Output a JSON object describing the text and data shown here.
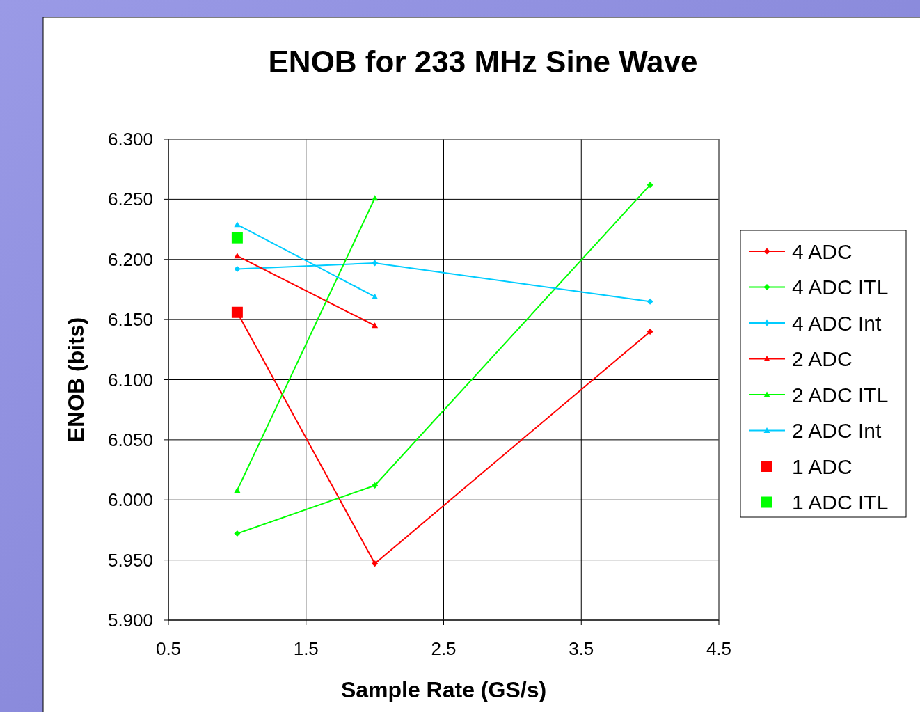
{
  "chart_data": {
    "type": "line",
    "title": "ENOB for 233 MHz Sine Wave",
    "xlabel": "Sample Rate (GS/s)",
    "ylabel": "ENOB (bits)",
    "xlim": [
      0.5,
      4.5
    ],
    "xticks": [
      0.5,
      1.5,
      2.5,
      3.5,
      4.5
    ],
    "ylim": [
      5.9,
      6.3
    ],
    "yticks": [
      {
        "value": 5.9,
        "label": "5.900"
      },
      {
        "value": 5.95,
        "label": "5.950"
      },
      {
        "value": 6.0,
        "label": "6.000"
      },
      {
        "value": 6.05,
        "label": "6.050"
      },
      {
        "value": 6.1,
        "label": "6.100"
      },
      {
        "value": 6.15,
        "label": "6.150"
      },
      {
        "value": 6.2,
        "label": "6.200"
      },
      {
        "value": 6.25,
        "label": "6.250"
      },
      {
        "value": 6.3,
        "label": "6.300"
      }
    ],
    "grid": true,
    "legend": "right",
    "series": [
      {
        "name": "4 ADC",
        "color": "#ff0000",
        "marker": "diamond",
        "x": [
          1,
          2,
          4
        ],
        "values": [
          6.156,
          5.947,
          6.14
        ]
      },
      {
        "name": "4 ADC ITL",
        "color": "#00ff00",
        "marker": "diamond",
        "x": [
          1,
          2,
          4
        ],
        "values": [
          5.972,
          6.012,
          6.262
        ]
      },
      {
        "name": "4 ADC Int",
        "color": "#00ccff",
        "marker": "diamond",
        "x": [
          1,
          2,
          4
        ],
        "values": [
          6.192,
          6.197,
          6.165
        ]
      },
      {
        "name": "2 ADC",
        "color": "#ff0000",
        "marker": "triangle",
        "x": [
          1,
          2
        ],
        "values": [
          6.203,
          6.145
        ]
      },
      {
        "name": "2 ADC ITL",
        "color": "#00ff00",
        "marker": "triangle",
        "x": [
          1,
          2
        ],
        "values": [
          6.008,
          6.251
        ]
      },
      {
        "name": "2 ADC Int",
        "color": "#00ccff",
        "marker": "triangle",
        "x": [
          1,
          2
        ],
        "values": [
          6.229,
          6.169
        ]
      },
      {
        "name": "1 ADC",
        "color": "#ff0000",
        "marker": "square",
        "type": "scatter",
        "x": [
          1
        ],
        "values": [
          6.156
        ]
      },
      {
        "name": "1 ADC ITL",
        "color": "#00ff00",
        "marker": "square",
        "type": "scatter",
        "x": [
          1
        ],
        "values": [
          6.218
        ]
      }
    ]
  }
}
